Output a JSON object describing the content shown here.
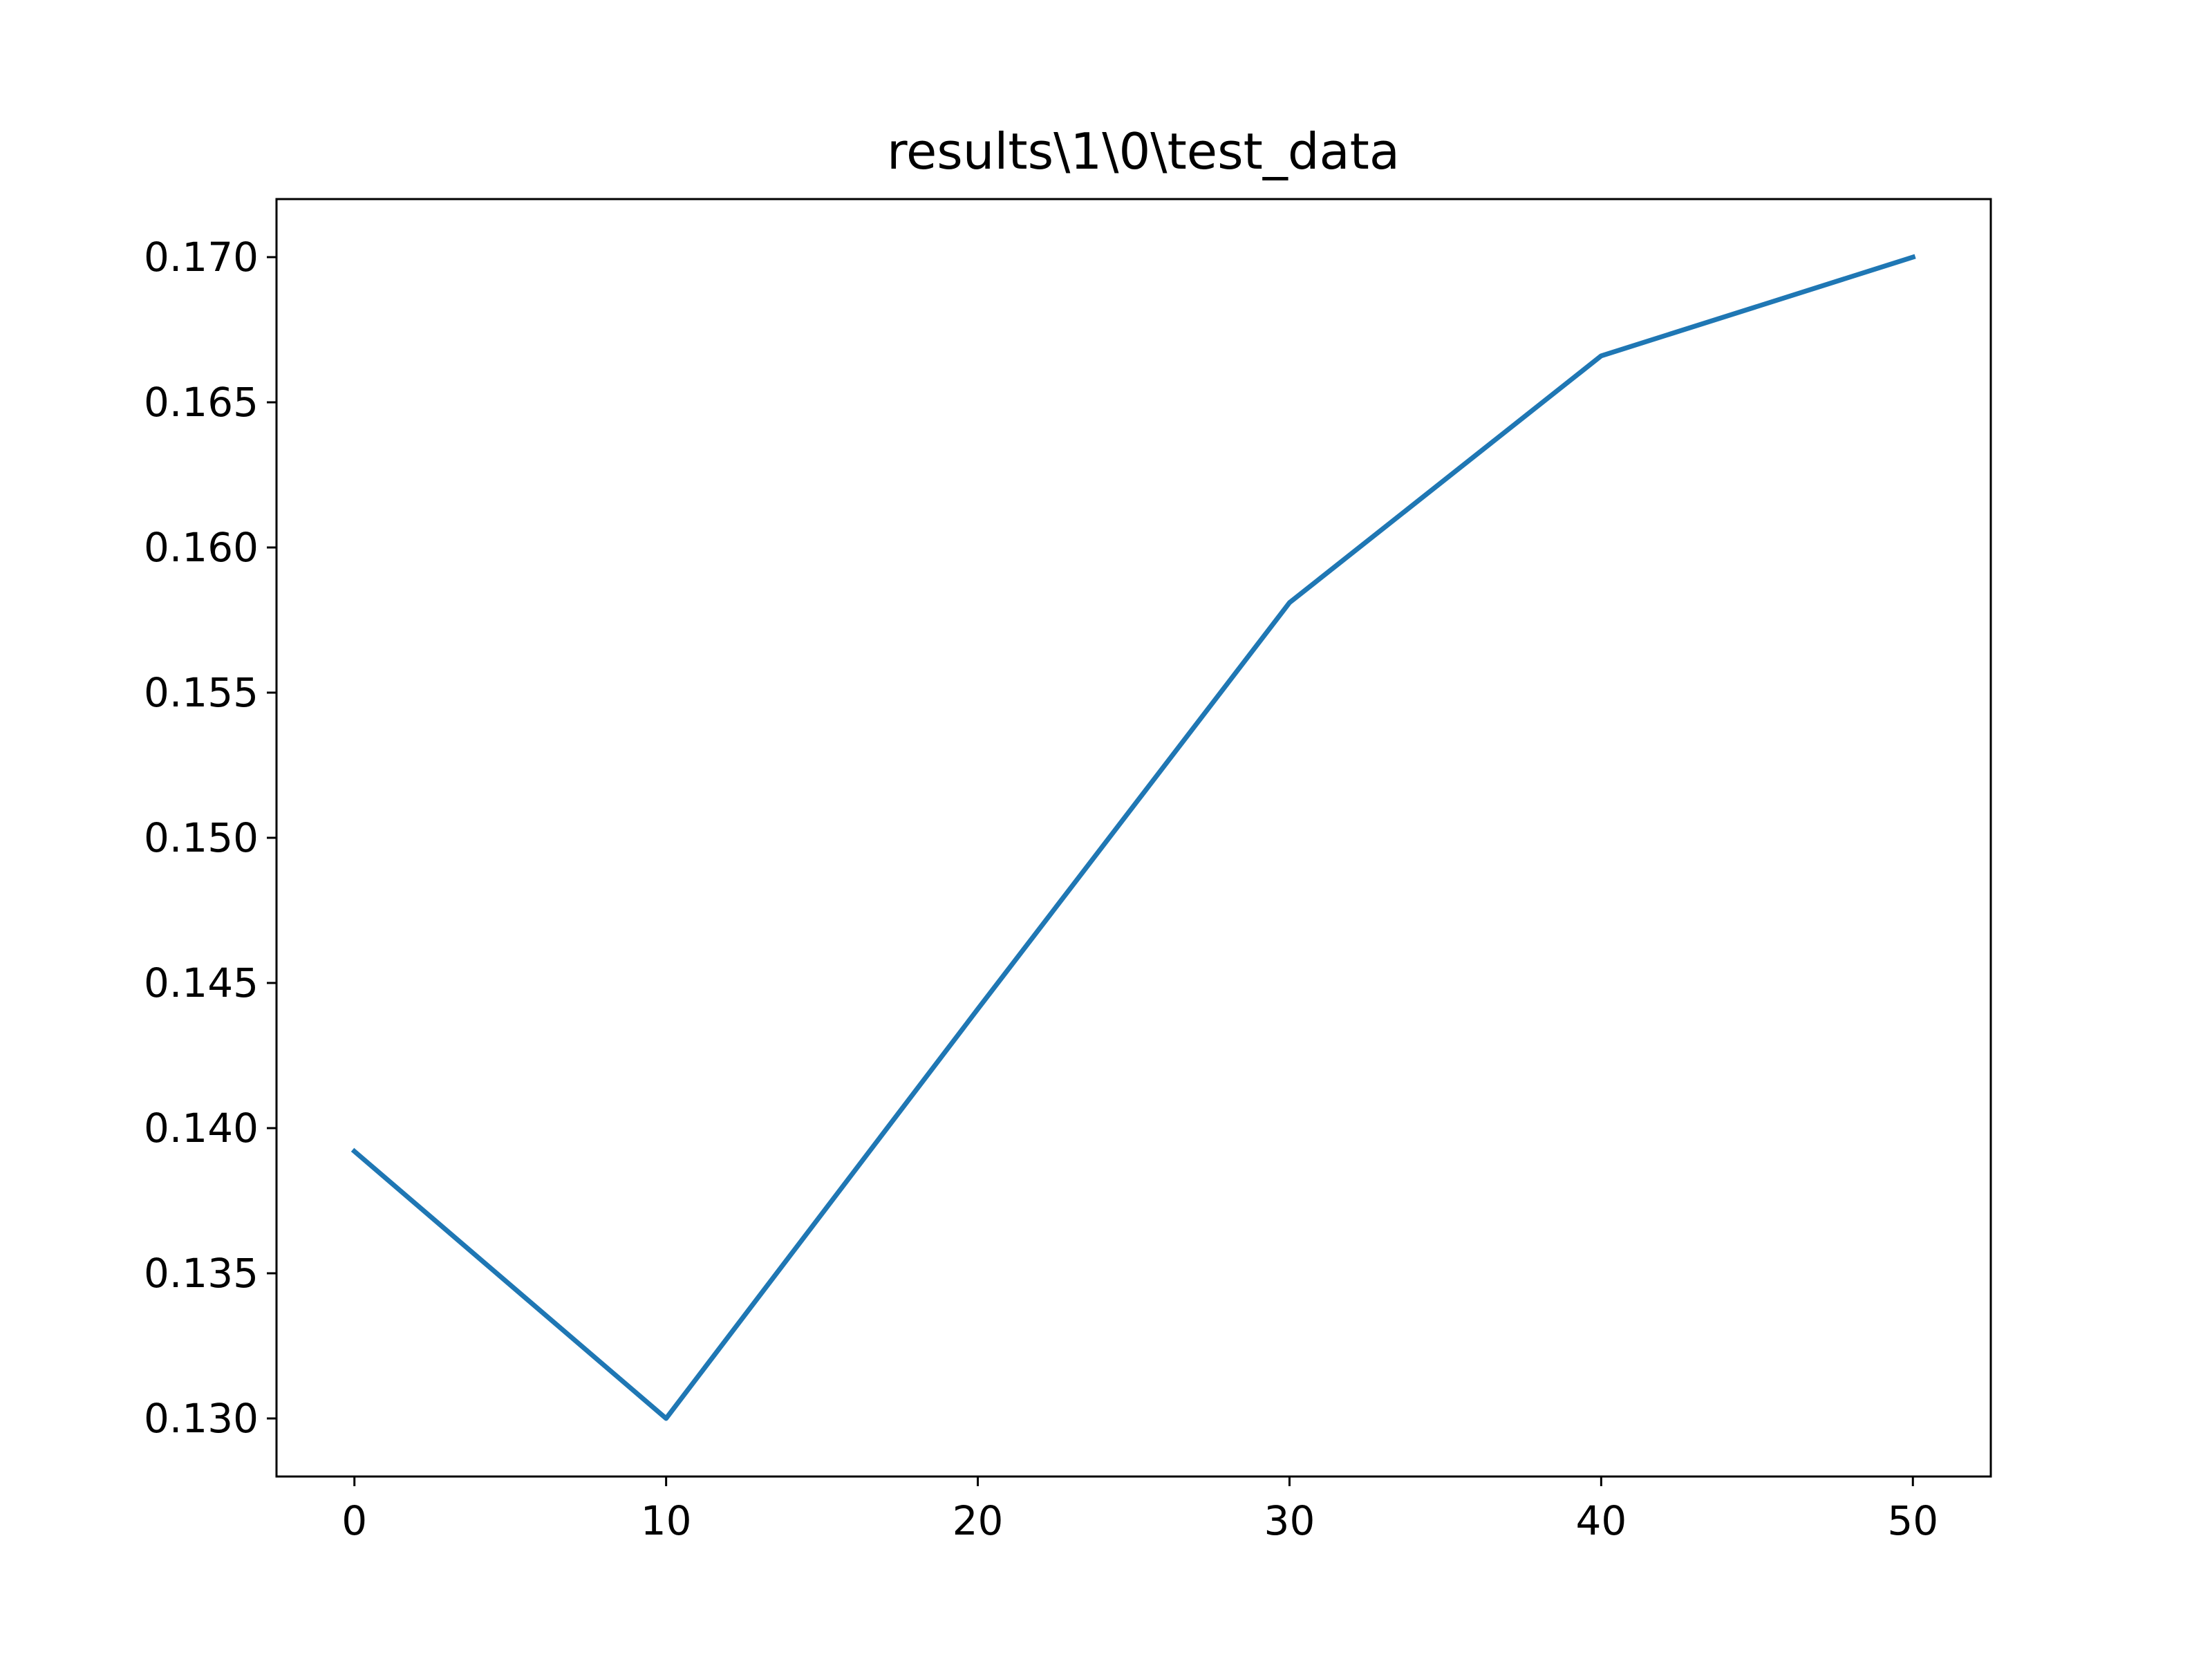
{
  "chart_data": {
    "type": "line",
    "title": "results\\1\\0\\test_data",
    "xlabel": "",
    "ylabel": "",
    "x": [
      0,
      10,
      20,
      30,
      40,
      50
    ],
    "series": [
      {
        "values": [
          0.1392,
          0.13,
          0.1441,
          0.1581,
          0.1666,
          0.17
        ],
        "color": "#1f77b4"
      }
    ],
    "xlim": [
      -2.5,
      52.5
    ],
    "ylim": [
      0.128,
      0.172
    ],
    "xticks": [
      0,
      10,
      20,
      30,
      40,
      50
    ],
    "xtick_labels": [
      "0",
      "10",
      "20",
      "30",
      "40",
      "50"
    ],
    "yticks": [
      0.13,
      0.135,
      0.14,
      0.145,
      0.15,
      0.155,
      0.16,
      0.165,
      0.17
    ],
    "ytick_labels": [
      "0.130",
      "0.135",
      "0.140",
      "0.145",
      "0.150",
      "0.155",
      "0.160",
      "0.165",
      "0.170"
    ],
    "grid": false,
    "legend": false
  }
}
